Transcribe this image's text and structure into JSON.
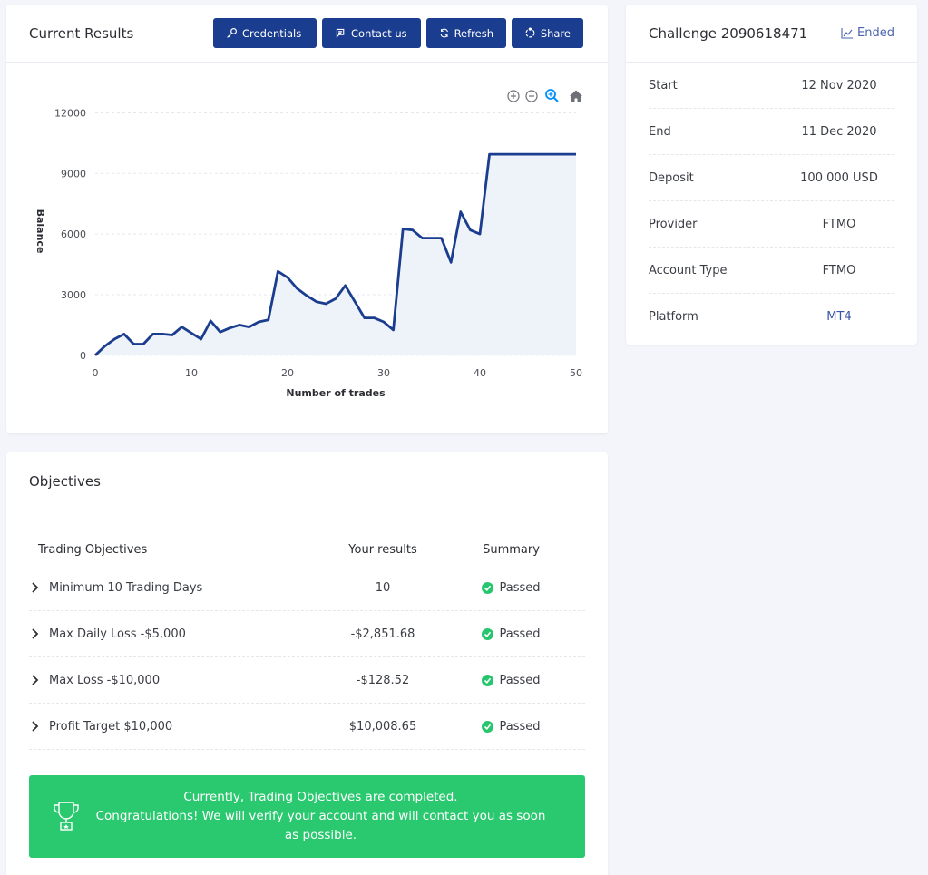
{
  "results": {
    "title": "Current Results",
    "buttons": {
      "credentials": "Credentials",
      "contact": "Contact us",
      "refresh": "Refresh",
      "share": "Share"
    }
  },
  "chart_data": {
    "type": "area",
    "xlabel": "Number of trades",
    "ylabel": "Balance",
    "xlim": [
      0,
      50
    ],
    "ylim": [
      -100,
      12200
    ],
    "x_ticks": [
      0,
      10,
      20,
      30,
      40,
      50
    ],
    "y_ticks": [
      0,
      3000,
      6000,
      9000,
      12000
    ],
    "grid": true,
    "line_color": "#1b3d8f",
    "fill_color": "#eef2f9",
    "x": [
      0,
      1,
      2,
      3,
      4,
      5,
      6,
      7,
      8,
      9,
      10,
      11,
      12,
      13,
      14,
      15,
      16,
      17,
      18,
      19,
      20,
      21,
      22,
      23,
      24,
      25,
      26,
      27,
      28,
      29,
      30,
      31,
      32,
      33,
      34,
      35,
      36,
      37,
      38,
      39,
      40,
      41,
      42,
      43,
      44,
      45,
      46,
      47,
      48,
      49,
      50
    ],
    "values": [
      0,
      450,
      800,
      1050,
      550,
      550,
      1050,
      1050,
      1000,
      1400,
      1100,
      800,
      1700,
      1150,
      1350,
      1500,
      1400,
      1650,
      1750,
      4150,
      3850,
      3300,
      2950,
      2650,
      2550,
      2800,
      3450,
      2650,
      1850,
      1850,
      1650,
      1250,
      6250,
      6200,
      5800,
      5800,
      5800,
      4600,
      7100,
      6200,
      6000,
      9950,
      9950,
      9950,
      9950,
      9950,
      9950,
      9950,
      9950,
      9950,
      9950
    ]
  },
  "challenge": {
    "title": "Challenge 2090618471",
    "status": "Ended",
    "rows": [
      {
        "label": "Start",
        "value": "12 Nov 2020"
      },
      {
        "label": "End",
        "value": "11 Dec 2020"
      },
      {
        "label": "Deposit",
        "value": "100 000 USD"
      },
      {
        "label": "Provider",
        "value": "FTMO"
      },
      {
        "label": "Account Type",
        "value": "FTMO"
      },
      {
        "label": "Platform",
        "value": "MT4"
      }
    ]
  },
  "objectives": {
    "title": "Objectives",
    "headers": [
      "Trading Objectives",
      "Your results",
      "Summary"
    ],
    "rows": [
      {
        "objective": "Minimum 10 Trading Days",
        "result": "10",
        "summary": "Passed"
      },
      {
        "objective": "Max Daily Loss -$5,000",
        "result": "-$2,851.68",
        "summary": "Passed"
      },
      {
        "objective": "Max Loss -$10,000",
        "result": "-$128.52",
        "summary": "Passed"
      },
      {
        "objective": "Profit Target $10,000",
        "result": "$10,008.65",
        "summary": "Passed"
      }
    ],
    "banner_line1": "Currently, Trading Objectives are completed.",
    "banner_line2": "Congratulations! We will verify your account and will contact you as soon as possible."
  }
}
